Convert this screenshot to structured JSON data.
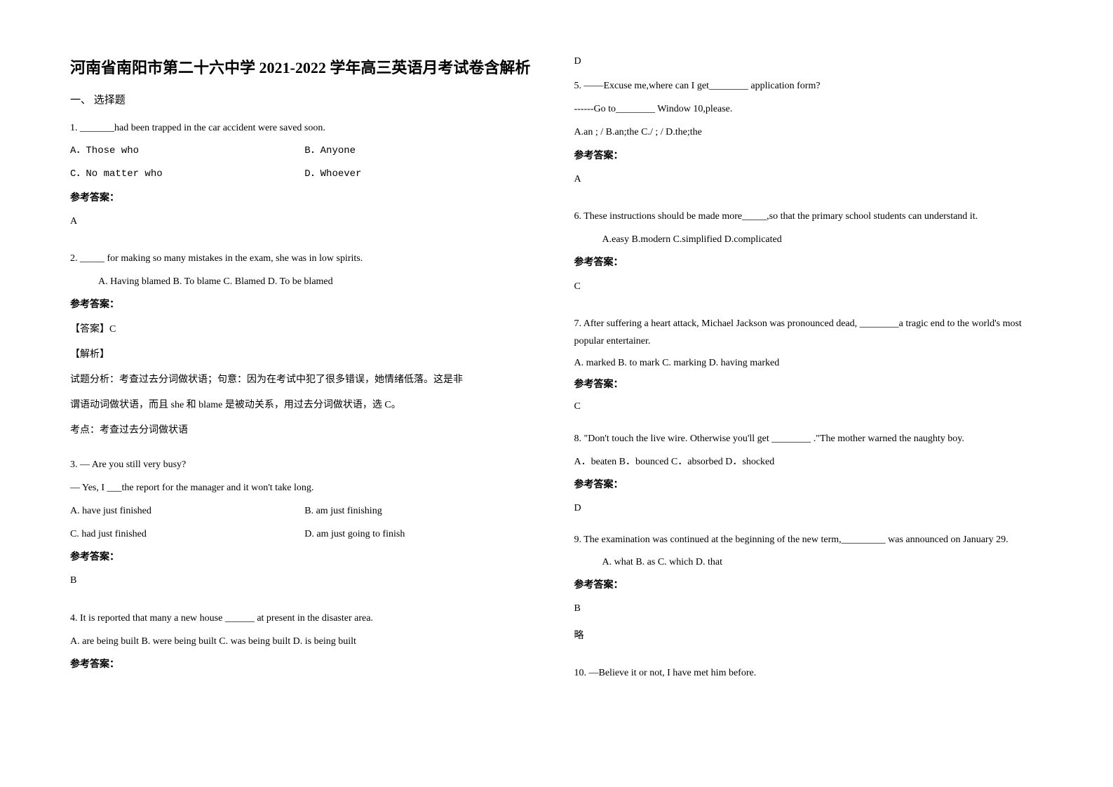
{
  "title": "河南省南阳市第二十六中学 2021-2022 学年高三英语月考试卷含解析",
  "section_header": "一、 选择题",
  "left": {
    "q1": {
      "text": "1. _______had been trapped in the car accident were saved soon.",
      "opt_a": "A．Those who",
      "opt_b": "B．Anyone",
      "opt_c": "C．No matter who",
      "opt_d": "D．Whoever",
      "ans_label": "参考答案：",
      "ans": "A"
    },
    "q2": {
      "text": "2. _____ for making so many mistakes in the exam, she was in low spirits.",
      "opts": "A. Having blamed       B. To blame    C. Blamed   D. To be blamed",
      "ans_label": "参考答案：",
      "exp1": "【答案】C",
      "exp2": "【解析】",
      "exp3": "试题分析：考查过去分词做状语；句意：因为在考试中犯了很多错误，她情绪低落。这是非",
      "exp4": "谓语动词做状语，而且 she 和 blame 是被动关系，用过去分词做状语，选 C。",
      "exp5": "考点：考查过去分词做状语"
    },
    "q3": {
      "line1": "3. — Are you still very busy?",
      "line2": "— Yes, I ___the report for the manager and it won't take long.",
      "opt_a": "A. have just finished",
      "opt_b": "B. am just finishing",
      "opt_c": "C. had just finished",
      "opt_d": "D. am just going to finish",
      "ans_label": "参考答案：",
      "ans": "B"
    },
    "q4": {
      "text": "4. It is reported that many a new house ______ at present in the disaster area.",
      "opts": "A. are being built   B. were being built  C. was being built  D. is being built",
      "ans_label": "参考答案："
    }
  },
  "right": {
    "q4_ans": "D",
    "q5": {
      "line1": "5. ——Excuse me,where can I get________ application form?",
      "line2": "------Go to________ Window 10,please.",
      "opts": "A.an ; /   B.an;the   C./ ; /   D.the;the",
      "ans_label": "参考答案：",
      "ans": "A"
    },
    "q6": {
      "text": "6. These instructions should be made more_____,so that the primary school students can understand it.",
      "opts": "A.easy          B.modern          C.simplified       D.complicated",
      "ans_label": "参考答案：",
      "ans": "C"
    },
    "q7": {
      "text": "7. After suffering a heart attack, Michael Jackson was pronounced dead, ________a tragic end to the world's most popular entertainer.",
      "opts": "A. marked           B. to mark     C. marking        D. having marked",
      "ans_label": "参考答案：",
      "ans": "C"
    },
    "q8": {
      "text": "8. \"Don't touch the live wire. Otherwise you'll get ________ .\"The mother warned the naughty boy.",
      "opts": "A．beaten          B．bounced          C．absorbed          D．shocked",
      "ans_label": "参考答案：",
      "ans": "D"
    },
    "q9": {
      "text": "9. The examination was continued at the beginning of the new term,_________ was announced on January 29.",
      "opts": "A. what          B. as              C. which             D. that",
      "ans_label": "参考答案：",
      "ans": "B",
      "note": "略"
    },
    "q10": {
      "text": "10. —Believe it or not, I have met him before."
    }
  }
}
